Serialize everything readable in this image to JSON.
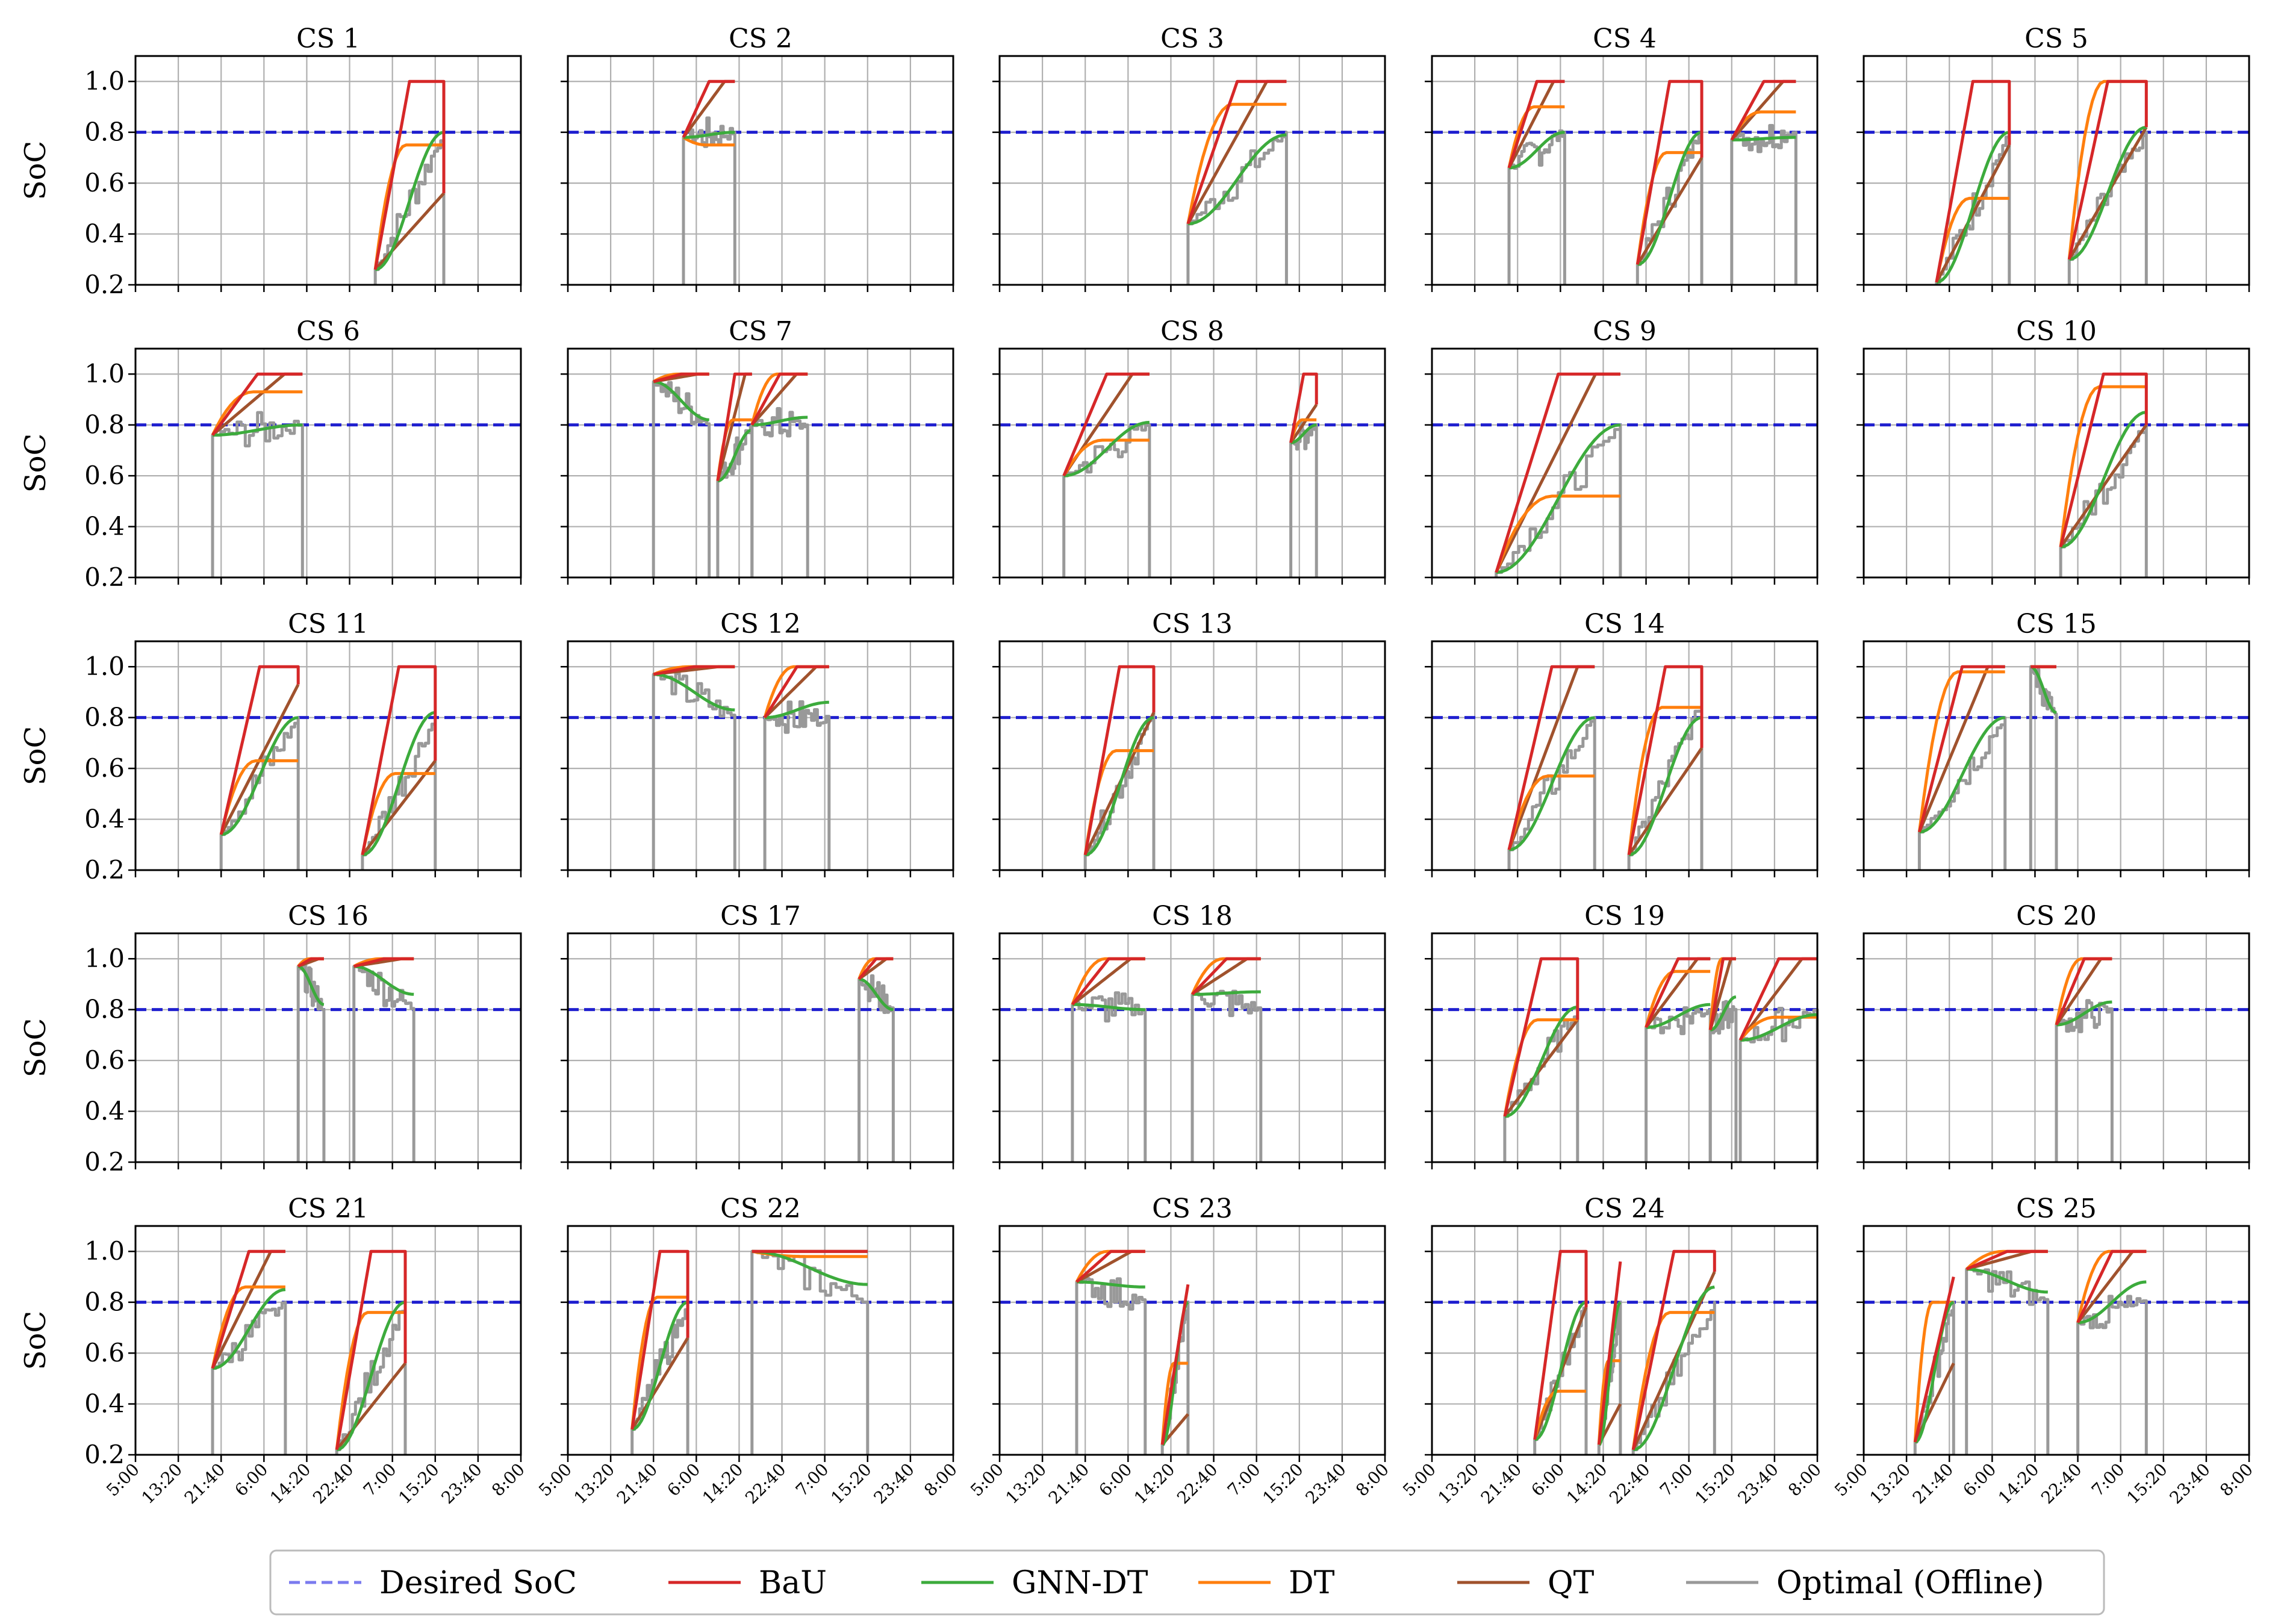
{
  "chart_data": {
    "type": "line",
    "layout": "grid-5x5",
    "ylabel": "SoC",
    "ylim": [
      0.2,
      1.1
    ],
    "y_ticks": [
      "0.2",
      "0.4",
      "0.6",
      "0.8",
      "1.0"
    ],
    "x_ticks": [
      "5:00",
      "13:20",
      "21:40",
      "6:00",
      "14:20",
      "22:40",
      "7:00",
      "15:20",
      "23:40",
      "8:00"
    ],
    "grid": true,
    "desired_soc": 0.8,
    "legend": {
      "placement": "bottom",
      "entries": [
        {
          "name": "Desired SoC",
          "color": "#7b7bef",
          "dashed": true
        },
        {
          "name": "BaU",
          "color": "#d62728"
        },
        {
          "name": "GNN-DT",
          "color": "#3cab3c"
        },
        {
          "name": "DT",
          "color": "#ff7f0e"
        },
        {
          "name": "QT",
          "color": "#a0522d"
        },
        {
          "name": "Optimal (Offline)",
          "color": "#999999"
        }
      ]
    },
    "x_unit_note": "x positions are tick indices 0-9",
    "panels": [
      {
        "title": "CS 1",
        "sessions": [
          {
            "start": 5.6,
            "end": 7.2,
            "s0": 0.26,
            "bau": 1.0,
            "dt": 0.75,
            "gnn": 0.8,
            "qt": 0.56,
            "opt": 0.8
          }
        ]
      },
      {
        "title": "CS 2",
        "sessions": [
          {
            "start": 2.7,
            "end": 3.9,
            "s0": 0.78,
            "bau": 1.0,
            "dt": 0.75,
            "gnn": 0.8,
            "qt": 1.0,
            "opt": 0.8
          }
        ]
      },
      {
        "title": "CS 3",
        "sessions": [
          {
            "start": 4.4,
            "end": 6.7,
            "s0": 0.44,
            "bau": 1.0,
            "dt": 0.91,
            "gnn": 0.79,
            "qt": 1.0,
            "opt": 0.8
          }
        ]
      },
      {
        "title": "CS 4",
        "sessions": [
          {
            "start": 1.8,
            "end": 3.1,
            "s0": 0.66,
            "bau": 1.0,
            "dt": 0.9,
            "gnn": 0.8,
            "qt": 1.0,
            "opt": 0.8
          },
          {
            "start": 4.8,
            "end": 6.3,
            "s0": 0.28,
            "bau": 1.0,
            "dt": 0.72,
            "gnn": 0.8,
            "qt": 0.7,
            "opt": 0.82
          },
          {
            "start": 7.0,
            "end": 8.5,
            "s0": 0.77,
            "bau": 1.0,
            "dt": 0.88,
            "gnn": 0.78,
            "qt": 1.0,
            "opt": 0.8
          }
        ]
      },
      {
        "title": "CS 5",
        "sessions": [
          {
            "start": 1.7,
            "end": 3.4,
            "s0": 0.21,
            "bau": 1.0,
            "dt": 0.54,
            "gnn": 0.8,
            "qt": 0.75,
            "opt": 0.8
          },
          {
            "start": 4.8,
            "end": 6.6,
            "s0": 0.3,
            "bau": 1.0,
            "dt": 1.0,
            "gnn": 0.82,
            "qt": 0.82,
            "opt": 0.8
          }
        ]
      },
      {
        "title": "CS 6",
        "sessions": [
          {
            "start": 1.8,
            "end": 3.9,
            "s0": 0.76,
            "bau": 1.0,
            "dt": 0.93,
            "gnn": 0.8,
            "qt": 1.0,
            "opt": 0.8
          }
        ]
      },
      {
        "title": "CS 7",
        "sessions": [
          {
            "start": 2.0,
            "end": 3.3,
            "s0": 0.97,
            "bau": 1.0,
            "dt": 1.0,
            "gnn": 0.82,
            "qt": 1.0,
            "opt": 0.8
          },
          {
            "start": 3.5,
            "end": 4.3,
            "s0": 0.58,
            "bau": 1.0,
            "dt": 0.82,
            "gnn": 0.78,
            "qt": 1.0,
            "opt": 0.8
          },
          {
            "start": 4.3,
            "end": 5.6,
            "s0": 0.8,
            "bau": 1.0,
            "dt": 1.0,
            "gnn": 0.83,
            "qt": 1.0,
            "opt": 0.8
          }
        ]
      },
      {
        "title": "CS 8",
        "sessions": [
          {
            "start": 1.5,
            "end": 3.5,
            "s0": 0.6,
            "bau": 1.0,
            "dt": 0.74,
            "gnn": 0.81,
            "qt": 1.0,
            "opt": 0.8
          },
          {
            "start": 6.8,
            "end": 7.4,
            "s0": 0.73,
            "bau": 1.0,
            "dt": 0.82,
            "gnn": 0.8,
            "qt": 0.88,
            "opt": 0.8
          }
        ]
      },
      {
        "title": "CS 9",
        "sessions": [
          {
            "start": 1.5,
            "end": 4.4,
            "s0": 0.22,
            "bau": 1.0,
            "dt": 0.52,
            "gnn": 0.8,
            "qt": 1.0,
            "opt": 0.8
          }
        ]
      },
      {
        "title": "CS 10",
        "sessions": [
          {
            "start": 4.6,
            "end": 6.6,
            "s0": 0.32,
            "bau": 1.0,
            "dt": 0.95,
            "gnn": 0.85,
            "qt": 0.8,
            "opt": 0.8
          }
        ]
      },
      {
        "title": "CS 11",
        "sessions": [
          {
            "start": 2.0,
            "end": 3.8,
            "s0": 0.34,
            "bau": 1.0,
            "dt": 0.63,
            "gnn": 0.8,
            "qt": 0.93,
            "opt": 0.8
          },
          {
            "start": 5.3,
            "end": 7.0,
            "s0": 0.26,
            "bau": 1.0,
            "dt": 0.58,
            "gnn": 0.82,
            "qt": 0.63,
            "opt": 0.8
          }
        ]
      },
      {
        "title": "CS 12",
        "sessions": [
          {
            "start": 2.0,
            "end": 3.9,
            "s0": 0.97,
            "bau": 1.0,
            "dt": 1.0,
            "gnn": 0.83,
            "qt": 1.0,
            "opt": 0.8
          },
          {
            "start": 4.6,
            "end": 6.1,
            "s0": 0.8,
            "bau": 1.0,
            "dt": 1.0,
            "gnn": 0.86,
            "qt": 1.0,
            "opt": 0.8
          }
        ]
      },
      {
        "title": "CS 13",
        "sessions": [
          {
            "start": 2.0,
            "end": 3.6,
            "s0": 0.26,
            "bau": 1.0,
            "dt": 0.67,
            "gnn": 0.8,
            "qt": 0.82,
            "opt": 0.82
          }
        ]
      },
      {
        "title": "CS 14",
        "sessions": [
          {
            "start": 1.8,
            "end": 3.8,
            "s0": 0.28,
            "bau": 1.0,
            "dt": 0.57,
            "gnn": 0.8,
            "qt": 1.0,
            "opt": 0.8
          },
          {
            "start": 4.6,
            "end": 6.3,
            "s0": 0.26,
            "bau": 1.0,
            "dt": 0.84,
            "gnn": 0.8,
            "qt": 0.68,
            "opt": 0.86
          }
        ]
      },
      {
        "title": "CS 15",
        "sessions": [
          {
            "start": 1.3,
            "end": 3.3,
            "s0": 0.35,
            "bau": 1.0,
            "dt": 0.98,
            "gnn": 0.8,
            "qt": 1.0,
            "opt": 0.8
          },
          {
            "start": 3.9,
            "end": 4.5,
            "s0": 1.0,
            "bau": 1.0,
            "dt": 1.0,
            "gnn": 0.82,
            "qt": 1.0,
            "opt": 0.8
          }
        ]
      },
      {
        "title": "CS 16",
        "sessions": [
          {
            "start": 3.8,
            "end": 4.4,
            "s0": 0.97,
            "bau": 1.0,
            "dt": 1.0,
            "gnn": 0.82,
            "qt": 1.0,
            "opt": 0.8
          },
          {
            "start": 5.1,
            "end": 6.5,
            "s0": 0.97,
            "bau": 1.0,
            "dt": 1.0,
            "gnn": 0.86,
            "qt": 1.0,
            "opt": 0.8
          }
        ]
      },
      {
        "title": "CS 17",
        "sessions": [
          {
            "start": 6.8,
            "end": 7.6,
            "s0": 0.92,
            "bau": 1.0,
            "dt": 1.0,
            "gnn": 0.8,
            "qt": 1.0,
            "opt": 0.8
          }
        ]
      },
      {
        "title": "CS 18",
        "sessions": [
          {
            "start": 1.7,
            "end": 3.4,
            "s0": 0.82,
            "bau": 1.0,
            "dt": 1.0,
            "gnn": 0.8,
            "qt": 1.0,
            "opt": 0.8
          },
          {
            "start": 4.5,
            "end": 6.1,
            "s0": 0.86,
            "bau": 1.0,
            "dt": 1.0,
            "gnn": 0.87,
            "qt": 1.0,
            "opt": 0.8
          }
        ]
      },
      {
        "title": "CS 19",
        "sessions": [
          {
            "start": 1.7,
            "end": 3.4,
            "s0": 0.38,
            "bau": 1.0,
            "dt": 0.76,
            "gnn": 0.81,
            "qt": 0.76,
            "opt": 0.8
          },
          {
            "start": 5.0,
            "end": 6.5,
            "s0": 0.73,
            "bau": 1.0,
            "dt": 0.95,
            "gnn": 0.82,
            "qt": 1.0,
            "opt": 0.8
          },
          {
            "start": 6.5,
            "end": 7.1,
            "s0": 0.72,
            "bau": 1.0,
            "dt": 1.0,
            "gnn": 0.85,
            "qt": 1.0,
            "opt": 0.8
          },
          {
            "start": 7.2,
            "end": 9.0,
            "s0": 0.68,
            "bau": 1.0,
            "dt": 0.77,
            "gnn": 0.78,
            "qt": 1.0,
            "opt": 0.8
          }
        ]
      },
      {
        "title": "CS 20",
        "sessions": [
          {
            "start": 4.5,
            "end": 5.8,
            "s0": 0.74,
            "bau": 1.0,
            "dt": 1.0,
            "gnn": 0.83,
            "qt": 1.0,
            "opt": 0.8
          }
        ]
      },
      {
        "title": "CS 21",
        "sessions": [
          {
            "start": 1.8,
            "end": 3.5,
            "s0": 0.54,
            "bau": 1.0,
            "dt": 0.86,
            "gnn": 0.85,
            "qt": 1.0,
            "opt": 0.8
          },
          {
            "start": 4.7,
            "end": 6.3,
            "s0": 0.22,
            "bau": 1.0,
            "dt": 0.76,
            "gnn": 0.8,
            "qt": 0.56,
            "opt": 0.8
          }
        ]
      },
      {
        "title": "CS 22",
        "sessions": [
          {
            "start": 1.5,
            "end": 2.8,
            "s0": 0.3,
            "bau": 1.0,
            "dt": 0.82,
            "gnn": 0.8,
            "qt": 0.66,
            "opt": 0.8
          },
          {
            "start": 4.3,
            "end": 7.0,
            "s0": 1.0,
            "bau": 1.0,
            "dt": 0.98,
            "gnn": 0.87,
            "qt": 1.0,
            "opt": 0.8
          }
        ]
      },
      {
        "title": "CS 23",
        "sessions": [
          {
            "start": 1.8,
            "end": 3.4,
            "s0": 0.88,
            "bau": 1.0,
            "dt": 1.0,
            "gnn": 0.86,
            "qt": 1.0,
            "opt": 0.8
          },
          {
            "start": 3.8,
            "end": 4.4,
            "s0": 0.24,
            "bau": 0.87,
            "dt": 0.56,
            "gnn": 0.8,
            "qt": 0.36,
            "opt": 0.8
          }
        ]
      },
      {
        "title": "CS 24",
        "sessions": [
          {
            "start": 2.4,
            "end": 3.6,
            "s0": 0.26,
            "bau": 1.0,
            "dt": 0.45,
            "gnn": 0.8,
            "qt": 0.78,
            "opt": 0.8
          },
          {
            "start": 3.9,
            "end": 4.4,
            "s0": 0.24,
            "bau": 0.96,
            "dt": 0.57,
            "gnn": 0.8,
            "qt": 0.4,
            "opt": 0.8
          },
          {
            "start": 4.7,
            "end": 6.6,
            "s0": 0.22,
            "bau": 1.0,
            "dt": 0.76,
            "gnn": 0.86,
            "qt": 0.92,
            "opt": 0.8
          }
        ]
      },
      {
        "title": "CS 25",
        "sessions": [
          {
            "start": 1.2,
            "end": 2.1,
            "s0": 0.25,
            "bau": 0.9,
            "dt": 0.8,
            "gnn": 0.8,
            "qt": 0.56,
            "opt": 0.8
          },
          {
            "start": 2.4,
            "end": 4.3,
            "s0": 0.93,
            "bau": 1.0,
            "dt": 1.0,
            "gnn": 0.84,
            "qt": 1.0,
            "opt": 0.8
          },
          {
            "start": 5.0,
            "end": 6.6,
            "s0": 0.72,
            "bau": 1.0,
            "dt": 1.0,
            "gnn": 0.88,
            "qt": 1.0,
            "opt": 0.8
          }
        ]
      }
    ]
  }
}
